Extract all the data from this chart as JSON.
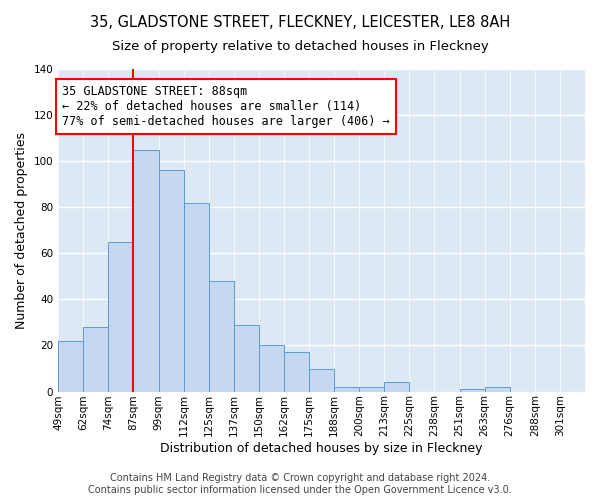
{
  "title": "35, GLADSTONE STREET, FLECKNEY, LEICESTER, LE8 8AH",
  "subtitle": "Size of property relative to detached houses in Fleckney",
  "xlabel": "Distribution of detached houses by size in Fleckney",
  "ylabel": "Number of detached properties",
  "bin_labels": [
    "49sqm",
    "62sqm",
    "74sqm",
    "87sqm",
    "99sqm",
    "112sqm",
    "125sqm",
    "137sqm",
    "150sqm",
    "162sqm",
    "175sqm",
    "188sqm",
    "200sqm",
    "213sqm",
    "225sqm",
    "238sqm",
    "251sqm",
    "263sqm",
    "276sqm",
    "288sqm",
    "301sqm"
  ],
  "bar_heights": [
    22,
    28,
    65,
    105,
    96,
    82,
    48,
    29,
    20,
    17,
    10,
    2,
    2,
    4,
    0,
    0,
    1,
    2,
    0,
    0,
    0
  ],
  "bar_color": "#c5d8f0",
  "bar_edge_color": "#5b9bd5",
  "vline_x_idx": 3,
  "vline_color": "red",
  "annotation_text": "35 GLADSTONE STREET: 88sqm\n← 22% of detached houses are smaller (114)\n77% of semi-detached houses are larger (406) →",
  "annotation_box_color": "white",
  "annotation_box_edge": "red",
  "ylim": [
    0,
    140
  ],
  "yticks": [
    0,
    20,
    40,
    60,
    80,
    100,
    120,
    140
  ],
  "plot_bg_color": "#dce9f5",
  "fig_bg_color": "#ffffff",
  "footer_line1": "Contains HM Land Registry data © Crown copyright and database right 2024.",
  "footer_line2": "Contains public sector information licensed under the Open Government Licence v3.0.",
  "title_fontsize": 10.5,
  "subtitle_fontsize": 9.5,
  "axis_label_fontsize": 9,
  "tick_fontsize": 7.5,
  "annotation_fontsize": 8.5,
  "footer_fontsize": 7
}
